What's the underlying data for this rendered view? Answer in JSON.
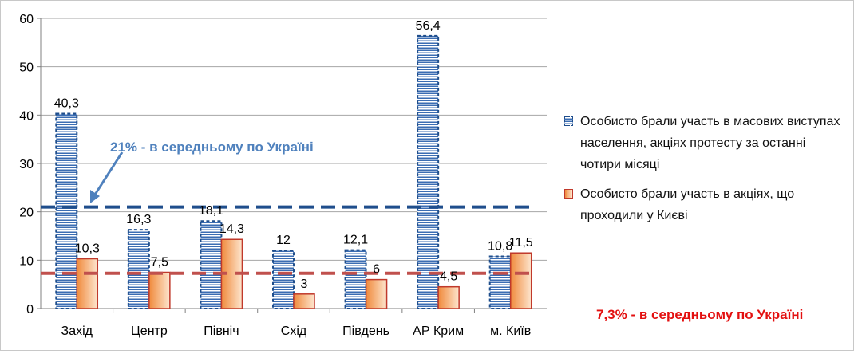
{
  "chart_data": {
    "type": "bar",
    "categories": [
      "Захід",
      "Центр",
      "Північ",
      "Схід",
      "Південь",
      "АР Крим",
      "м. Київ"
    ],
    "series": [
      {
        "name": "Особисто брали участь в масових виступах населення, акціях протесту за останні чотири місяці",
        "values": [
          40.3,
          16.3,
          18.1,
          12,
          12.1,
          56.4,
          10.8
        ],
        "labels": [
          "40,3",
          "16,3",
          "18,1",
          "12",
          "12,1",
          "56,4",
          "10,8"
        ],
        "color": "#1f4e8c"
      },
      {
        "name": "Особисто брали участь в акціях, що проходили у Києві",
        "values": [
          10.3,
          7.5,
          14.3,
          3,
          6,
          4.5,
          11.5
        ],
        "labels": [
          "10,3",
          "7,5",
          "14,3",
          "3",
          "6",
          "4,5",
          "11,5"
        ],
        "color": "#c0392b"
      }
    ],
    "y_ticks": [
      "0",
      "10",
      "20",
      "30",
      "40",
      "50",
      "60"
    ],
    "ylim": [
      0,
      60
    ],
    "grid": true,
    "legend_position": "right",
    "reference_lines": [
      {
        "value": 21,
        "text": "21% - в середньому по Україні",
        "color": "#1f4e8c",
        "text_color": "#4f81bd"
      },
      {
        "value": 7.3,
        "text": "7,3% - в середньому по Україні",
        "color": "#c0504d",
        "text_color": "#e31010"
      }
    ]
  }
}
